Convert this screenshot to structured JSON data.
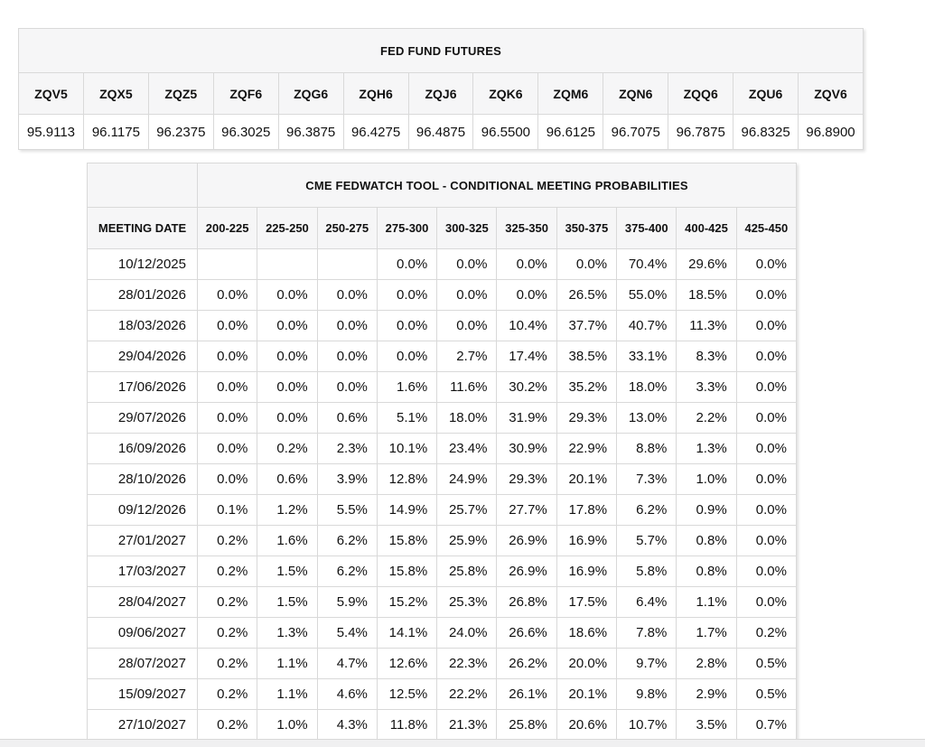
{
  "futures_table": {
    "title": "FED FUND FUTURES",
    "tickers": [
      "ZQV5",
      "ZQX5",
      "ZQZ5",
      "ZQF6",
      "ZQG6",
      "ZQH6",
      "ZQJ6",
      "ZQK6",
      "ZQM6",
      "ZQN6",
      "ZQQ6",
      "ZQU6",
      "ZQV6"
    ],
    "prices": [
      "95.9113",
      "96.1175",
      "96.2375",
      "96.3025",
      "96.3875",
      "96.4275",
      "96.4875",
      "96.5500",
      "96.6125",
      "96.7075",
      "96.7875",
      "96.8325",
      "96.8900"
    ]
  },
  "fedwatch_table": {
    "title": "CME FEDWATCH TOOL - CONDITIONAL MEETING PROBABILITIES",
    "date_column_header": "MEETING DATE",
    "rate_range_headers": [
      "200-225",
      "225-250",
      "250-275",
      "275-300",
      "300-325",
      "325-350",
      "350-375",
      "375-400",
      "400-425",
      "425-450"
    ],
    "rows": [
      {
        "date": "10/12/2025",
        "values": [
          "",
          "",
          "",
          "0.0%",
          "0.0%",
          "0.0%",
          "0.0%",
          "70.4%",
          "29.6%",
          "0.0%"
        ],
        "highlights": [
          "",
          "",
          "",
          "",
          "",
          "",
          "",
          "blue",
          "yellow",
          ""
        ]
      },
      {
        "date": "28/01/2026",
        "values": [
          "0.0%",
          "0.0%",
          "0.0%",
          "0.0%",
          "0.0%",
          "0.0%",
          "26.5%",
          "55.0%",
          "18.5%",
          "0.0%"
        ],
        "highlights": [
          "",
          "",
          "",
          "",
          "",
          "",
          "",
          "blue",
          "yellow",
          ""
        ]
      },
      {
        "date": "18/03/2026",
        "values": [
          "0.0%",
          "0.0%",
          "0.0%",
          "0.0%",
          "0.0%",
          "10.4%",
          "37.7%",
          "40.7%",
          "11.3%",
          "0.0%"
        ],
        "highlights": [
          "",
          "",
          "",
          "",
          "",
          "",
          "",
          "blue",
          "yellow",
          ""
        ]
      },
      {
        "date": "29/04/2026",
        "values": [
          "0.0%",
          "0.0%",
          "0.0%",
          "0.0%",
          "2.7%",
          "17.4%",
          "38.5%",
          "33.1%",
          "8.3%",
          "0.0%"
        ],
        "highlights": [
          "",
          "",
          "",
          "",
          "",
          "",
          "blue",
          "yellow",
          "yellow",
          ""
        ]
      },
      {
        "date": "17/06/2026",
        "values": [
          "0.0%",
          "0.0%",
          "0.0%",
          "1.6%",
          "11.6%",
          "30.2%",
          "35.2%",
          "18.0%",
          "3.3%",
          "0.0%"
        ],
        "highlights": [
          "",
          "",
          "",
          "",
          "",
          "",
          "blue",
          "yellow",
          "yellow",
          ""
        ]
      },
      {
        "date": "29/07/2026",
        "values": [
          "0.0%",
          "0.0%",
          "0.6%",
          "5.1%",
          "18.0%",
          "31.9%",
          "29.3%",
          "13.0%",
          "2.2%",
          "0.0%"
        ],
        "highlights": [
          "",
          "",
          "",
          "",
          "",
          "blue",
          "yellow",
          "yellow",
          "yellow",
          ""
        ]
      },
      {
        "date": "16/09/2026",
        "values": [
          "0.0%",
          "0.2%",
          "2.3%",
          "10.1%",
          "23.4%",
          "30.9%",
          "22.9%",
          "8.8%",
          "1.3%",
          "0.0%"
        ],
        "highlights": [
          "",
          "",
          "",
          "",
          "",
          "blue",
          "yellow",
          "yellow",
          "yellow",
          ""
        ]
      },
      {
        "date": "28/10/2026",
        "values": [
          "0.0%",
          "0.6%",
          "3.9%",
          "12.8%",
          "24.9%",
          "29.3%",
          "20.1%",
          "7.3%",
          "1.0%",
          "0.0%"
        ],
        "highlights": [
          "",
          "",
          "",
          "",
          "",
          "blue",
          "yellow",
          "yellow",
          "yellow",
          ""
        ]
      },
      {
        "date": "09/12/2026",
        "values": [
          "0.1%",
          "1.2%",
          "5.5%",
          "14.9%",
          "25.7%",
          "27.7%",
          "17.8%",
          "6.2%",
          "0.9%",
          "0.0%"
        ],
        "highlights": [
          "",
          "",
          "",
          "",
          "",
          "blue",
          "yellow",
          "yellow",
          "yellow",
          ""
        ]
      },
      {
        "date": "27/01/2027",
        "values": [
          "0.2%",
          "1.6%",
          "6.2%",
          "15.8%",
          "25.9%",
          "26.9%",
          "16.9%",
          "5.7%",
          "0.8%",
          "0.0%"
        ],
        "highlights": [
          "",
          "",
          "",
          "",
          "",
          "blue",
          "yellow",
          "yellow",
          "yellow",
          ""
        ]
      },
      {
        "date": "17/03/2027",
        "values": [
          "0.2%",
          "1.5%",
          "6.2%",
          "15.8%",
          "25.8%",
          "26.9%",
          "16.9%",
          "5.8%",
          "0.8%",
          "0.0%"
        ],
        "highlights": [
          "",
          "",
          "",
          "",
          "",
          "blue",
          "yellow",
          "yellow",
          "yellow",
          ""
        ]
      },
      {
        "date": "28/04/2027",
        "values": [
          "0.2%",
          "1.5%",
          "5.9%",
          "15.2%",
          "25.3%",
          "26.8%",
          "17.5%",
          "6.4%",
          "1.1%",
          "0.0%"
        ],
        "highlights": [
          "",
          "",
          "",
          "",
          "",
          "blue",
          "yellow",
          "yellow",
          "yellow",
          ""
        ]
      },
      {
        "date": "09/06/2027",
        "values": [
          "0.2%",
          "1.3%",
          "5.4%",
          "14.1%",
          "24.0%",
          "26.6%",
          "18.6%",
          "7.8%",
          "1.7%",
          "0.2%"
        ],
        "highlights": [
          "",
          "",
          "",
          "",
          "",
          "blue",
          "yellow",
          "yellow",
          "yellow",
          ""
        ]
      },
      {
        "date": "28/07/2027",
        "values": [
          "0.2%",
          "1.1%",
          "4.7%",
          "12.6%",
          "22.3%",
          "26.2%",
          "20.0%",
          "9.7%",
          "2.8%",
          "0.5%"
        ],
        "highlights": [
          "",
          "",
          "",
          "",
          "",
          "blue",
          "yellow",
          "yellow",
          "yellow",
          ""
        ]
      },
      {
        "date": "15/09/2027",
        "values": [
          "0.2%",
          "1.1%",
          "4.6%",
          "12.5%",
          "22.2%",
          "26.1%",
          "20.1%",
          "9.8%",
          "2.9%",
          "0.5%"
        ],
        "highlights": [
          "",
          "",
          "",
          "",
          "",
          "blue",
          "yellow",
          "yellow",
          "yellow",
          ""
        ]
      },
      {
        "date": "27/10/2027",
        "values": [
          "0.2%",
          "1.0%",
          "4.3%",
          "11.8%",
          "21.3%",
          "25.8%",
          "20.6%",
          "10.7%",
          "3.5%",
          "0.7%"
        ],
        "highlights": [
          "",
          "",
          "",
          "",
          "",
          "blue",
          "yellow",
          "yellow",
          "yellow",
          ""
        ]
      }
    ]
  },
  "colors": {
    "highlight_blue": "#cdeef7",
    "highlight_yellow": "#f8f8da",
    "header_background": "#f6f6f7",
    "border": "#d9d9d9"
  }
}
